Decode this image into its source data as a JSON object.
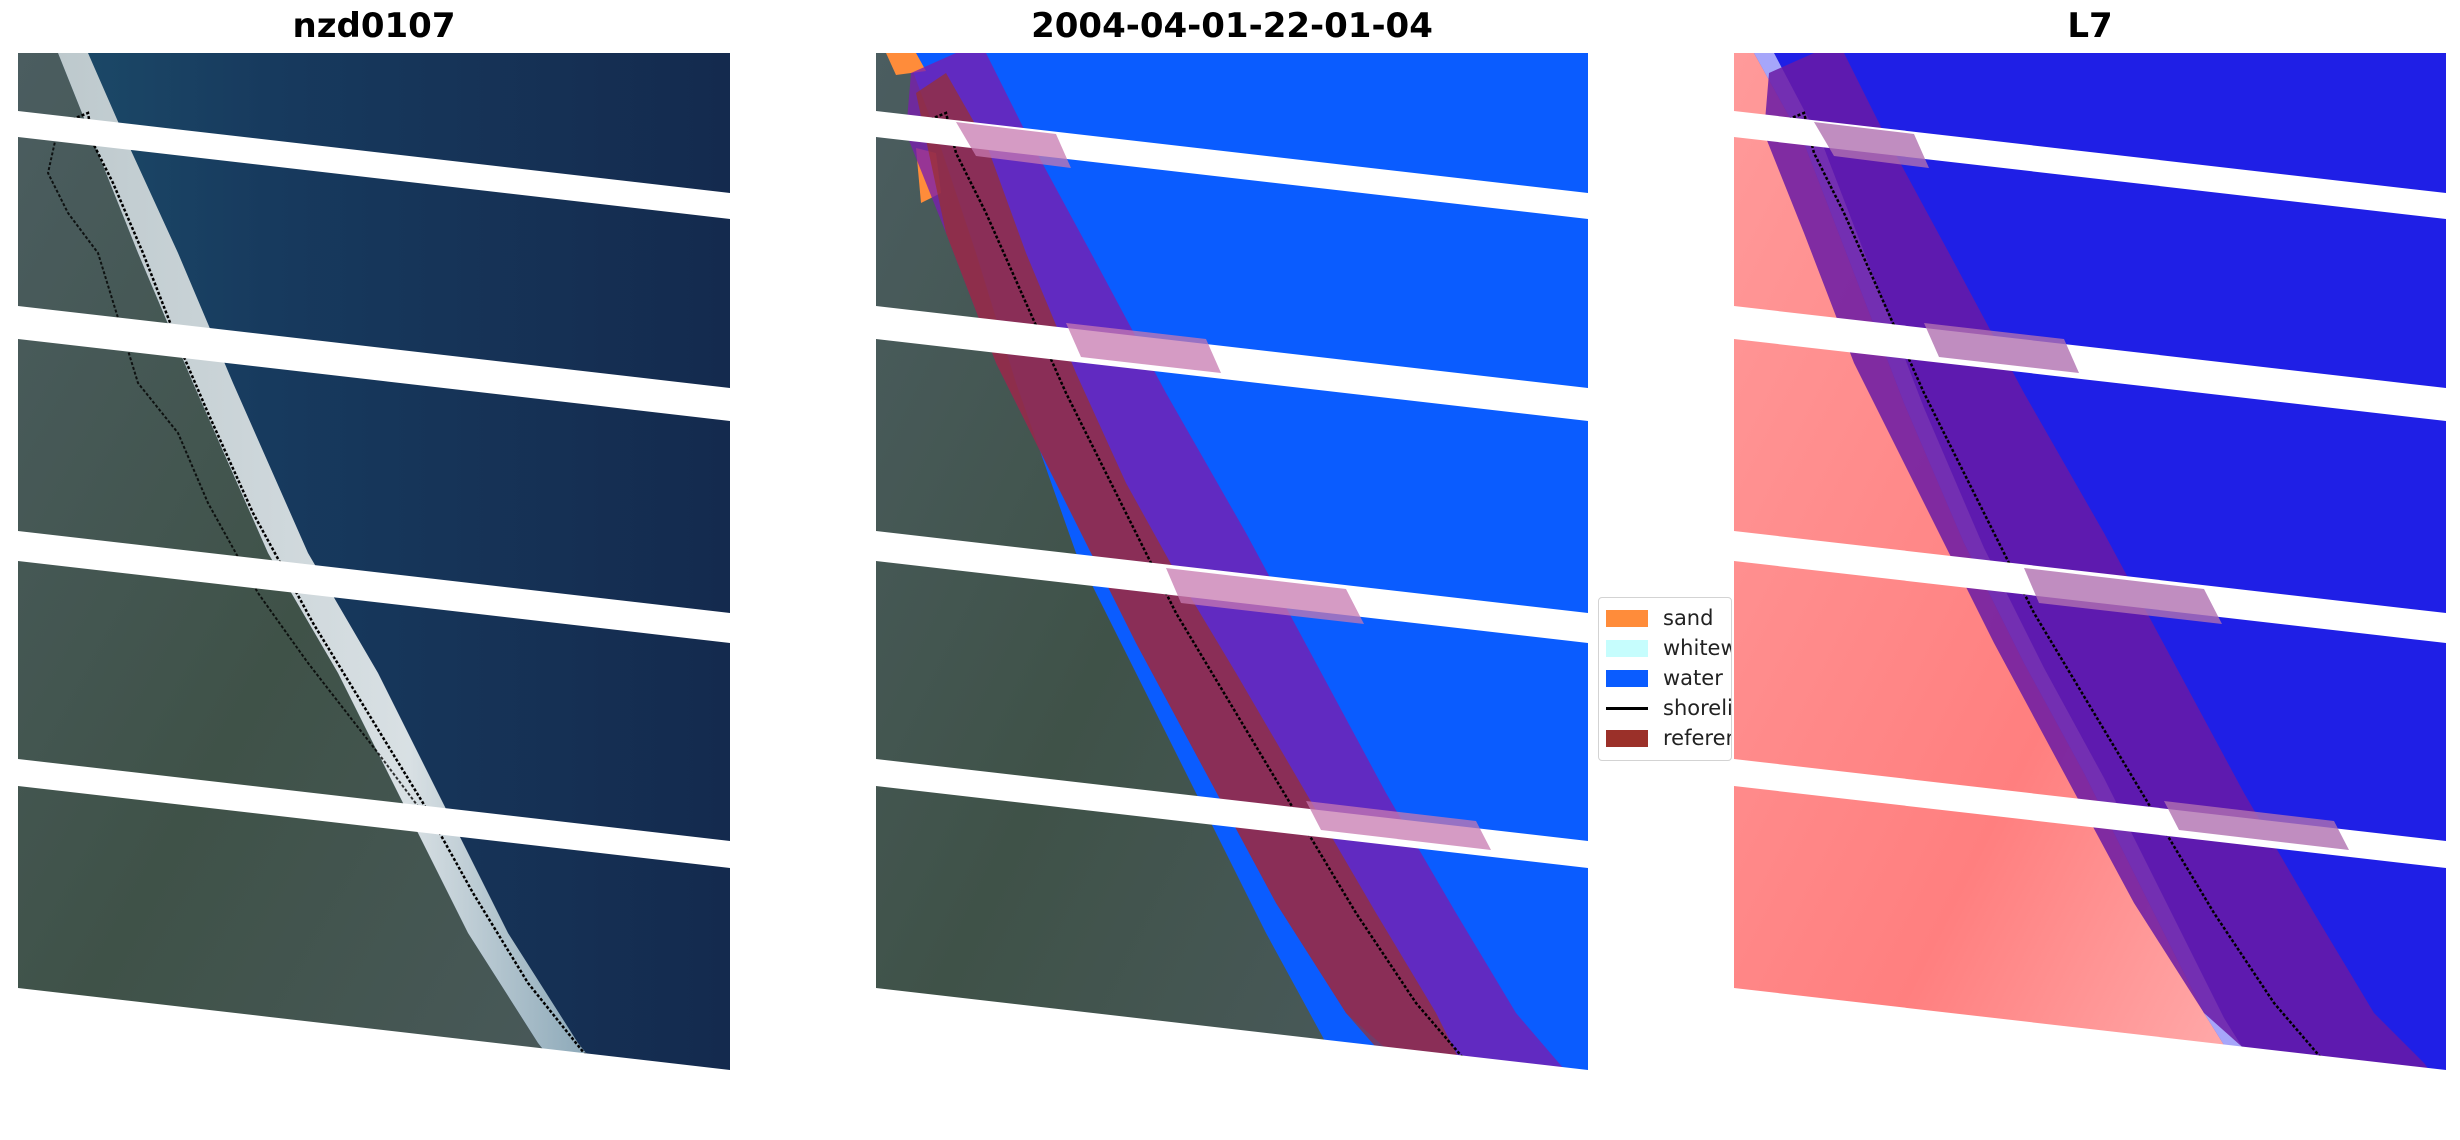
{
  "panels": [
    {
      "title": "nzd0107"
    },
    {
      "title": "2004-04-01-22-01-04"
    },
    {
      "title": "L7"
    }
  ],
  "legend": {
    "items": [
      {
        "label": "sand",
        "color": "#ff8c3a",
        "kind": "swatch"
      },
      {
        "label": "whitewater",
        "color": "#c6fdfd",
        "kind": "swatch"
      },
      {
        "label": "water",
        "color": "#0a5cff",
        "kind": "swatch"
      },
      {
        "label": "shoreline",
        "color": "#000000",
        "kind": "line"
      },
      {
        "label": "reference shoreline buffer",
        "color": "#9b3029",
        "kind": "swatch"
      }
    ]
  },
  "colors": {
    "water_dark": "#12264a",
    "land_green": "#3b4d49",
    "classified_water": "#0a5cff",
    "buffer_purple": "#6a1aa5",
    "sand_orange": "#ff8c3a",
    "land_red_index": "#ff7a7a",
    "water_blue_index": "#1f1fe6",
    "scanline_gap": "#ffffff"
  }
}
